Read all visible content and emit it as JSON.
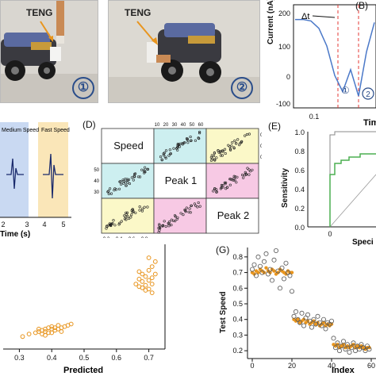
{
  "panel_a": {
    "photo1_label": "TENG",
    "photo1_number": "①",
    "photo2_label": "TENG",
    "photo2_number": "②"
  },
  "panel_b": {
    "letter": "(B)",
    "ylabel": "Current (nA)",
    "xlabel": "Tim",
    "yticks": [
      "200",
      "100",
      "0",
      "-100"
    ],
    "xticks": [
      "0.1"
    ],
    "annotation": "Δt",
    "marker1": "①",
    "marker2": "2"
  },
  "panel_c": {
    "medium_label": "Medium Speed",
    "fast_label": "Fast Speed",
    "xticks": [
      "2",
      "3",
      "4",
      "5"
    ],
    "xlabel": "Time (s)"
  },
  "panel_d": {
    "letter": "(D)",
    "diag_labels": [
      "Speed",
      "Peak 1",
      "Peak 2"
    ],
    "top_ticks": [
      "10",
      "20",
      "30",
      "40",
      "50",
      "60"
    ],
    "left_ticks": [
      "50",
      "40",
      "30"
    ],
    "right_ticks": [
      "0.8",
      "0.6",
      "0.4"
    ],
    "bottom_ticks": [
      "0.2",
      "0.4",
      "0.6",
      "0.8"
    ]
  },
  "panel_e": {
    "letter": "(E)",
    "ylabel": "Sensitivity",
    "xlabel": "Speci",
    "yticks": [
      "1.0",
      "0.8",
      "0.6",
      "0.4",
      "0.2",
      "0.0"
    ],
    "xticks": [
      "0"
    ]
  },
  "panel_f": {
    "xlabel": "Predicted",
    "xticks": [
      "0.3",
      "0.4",
      "0.5",
      "0.6",
      "0.7"
    ]
  },
  "panel_g": {
    "letter": "(G)",
    "ylabel": "Test Speed",
    "xlabel": "Index",
    "yticks": [
      "0.8",
      "0.7",
      "0.6",
      "0.5",
      "0.4",
      "0.3",
      "0.2"
    ],
    "xticks": [
      "0",
      "20",
      "40",
      "60"
    ]
  },
  "colors": {
    "orange": "#e8951e",
    "blue_curve": "#4a78c8",
    "green_roc": "#4caf50",
    "red_dash": "#e53935",
    "navy": "#1a2a6c"
  },
  "chart_data": [
    {
      "type": "line",
      "panel": "B",
      "ylabel": "Current (nA)",
      "xlabel": "Tim",
      "ylim": [
        -150,
        200
      ],
      "series": [
        {
          "values": [
            150,
            150,
            145,
            120,
            60,
            -40,
            -95,
            -20,
            -110,
            40,
            140
          ]
        }
      ]
    },
    {
      "type": "scatter",
      "panel": "F",
      "xlabel": "Predicted",
      "xlim": [
        0.25,
        0.75
      ],
      "points": [
        [
          0.31,
          0.2
        ],
        [
          0.33,
          0.22
        ],
        [
          0.35,
          0.23
        ],
        [
          0.36,
          0.24
        ],
        [
          0.37,
          0.25
        ],
        [
          0.37,
          0.22
        ],
        [
          0.38,
          0.26
        ],
        [
          0.38,
          0.24
        ],
        [
          0.39,
          0.27
        ],
        [
          0.39,
          0.23
        ],
        [
          0.4,
          0.26
        ],
        [
          0.4,
          0.28
        ],
        [
          0.41,
          0.25
        ],
        [
          0.41,
          0.27
        ],
        [
          0.42,
          0.29
        ],
        [
          0.42,
          0.26
        ],
        [
          0.43,
          0.27
        ],
        [
          0.44,
          0.28
        ],
        [
          0.45,
          0.29
        ],
        [
          0.46,
          0.3
        ],
        [
          0.38,
          0.21
        ],
        [
          0.36,
          0.26
        ],
        [
          0.4,
          0.23
        ],
        [
          0.43,
          0.24
        ],
        [
          0.66,
          0.62
        ],
        [
          0.67,
          0.66
        ],
        [
          0.67,
          0.6
        ],
        [
          0.68,
          0.7
        ],
        [
          0.68,
          0.64
        ],
        [
          0.69,
          0.68
        ],
        [
          0.69,
          0.61
        ],
        [
          0.7,
          0.73
        ],
        [
          0.7,
          0.65
        ],
        [
          0.7,
          0.58
        ],
        [
          0.71,
          0.76
        ],
        [
          0.71,
          0.67
        ],
        [
          0.71,
          0.62
        ],
        [
          0.72,
          0.8
        ],
        [
          0.72,
          0.7
        ],
        [
          0.69,
          0.57
        ],
        [
          0.68,
          0.59
        ],
        [
          0.71,
          0.55
        ],
        [
          0.7,
          0.83
        ],
        [
          0.67,
          0.72
        ]
      ]
    },
    {
      "type": "scatter",
      "panel": "G",
      "ylabel": "Test Speed",
      "xlabel": "Index",
      "ylim": [
        0.15,
        0.85
      ],
      "series": [
        {
          "marker": "open-circle",
          "values": [
            0.72,
            0.75,
            0.68,
            0.8,
            0.74,
            0.7,
            0.77,
            0.82,
            0.69,
            0.72,
            0.65,
            0.78,
            0.84,
            0.71,
            0.6,
            0.73,
            0.66,
            0.76,
            0.7,
            0.68,
            0.58,
            0.42,
            0.45,
            0.4,
            0.38,
            0.44,
            0.36,
            0.41,
            0.43,
            0.39,
            0.35,
            0.4,
            0.37,
            0.42,
            0.38,
            0.36,
            0.4,
            0.34,
            0.38,
            0.37,
            0.39,
            0.28,
            0.22,
            0.25,
            0.2,
            0.23,
            0.26,
            0.21,
            0.24,
            0.19,
            0.22,
            0.25,
            0.2,
            0.23,
            0.21,
            0.24,
            0.22,
            0.2,
            0.23,
            0.21
          ]
        },
        {
          "marker": "filled-orange",
          "values": [
            0.7,
            0.69,
            0.71,
            0.7,
            0.72,
            0.71,
            0.7,
            0.73,
            0.71,
            0.7,
            0.72,
            0.71,
            0.69,
            0.7,
            0.72,
            0.71,
            0.7,
            0.69,
            0.71,
            0.7,
            0.7,
            0.4,
            0.39,
            0.4,
            0.38,
            0.39,
            0.4,
            0.38,
            0.39,
            0.37,
            0.38,
            0.39,
            0.37,
            0.38,
            0.36,
            0.37,
            0.38,
            0.36,
            0.37,
            0.36,
            0.37,
            0.24,
            0.23,
            0.24,
            0.22,
            0.23,
            0.24,
            0.22,
            0.23,
            0.22,
            0.23,
            0.24,
            0.22,
            0.23,
            0.22,
            0.23,
            0.22,
            0.21,
            0.22,
            0.22
          ]
        }
      ]
    }
  ]
}
